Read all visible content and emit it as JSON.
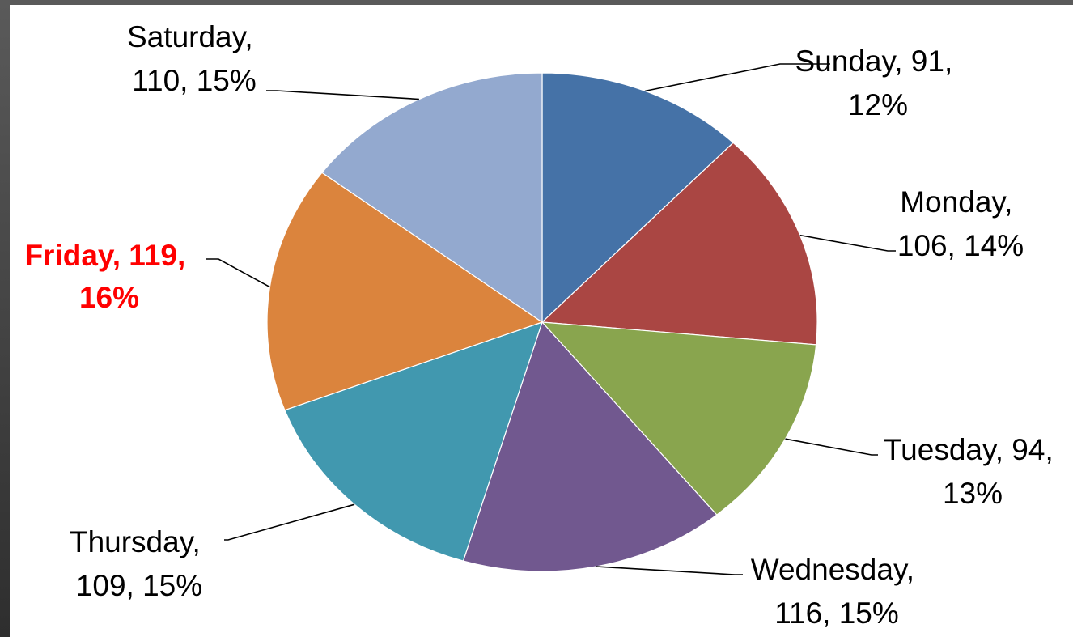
{
  "chart_data": {
    "type": "pie",
    "title": "",
    "slices": [
      {
        "category": "Sunday",
        "value": 91,
        "percent": "12%",
        "color": "#4572a7",
        "highlight": false
      },
      {
        "category": "Monday",
        "value": 106,
        "percent": "14%",
        "color": "#aa4643",
        "highlight": false
      },
      {
        "category": "Tuesday",
        "value": 94,
        "percent": "13%",
        "color": "#89a54e",
        "highlight": false
      },
      {
        "category": "Wednesday",
        "value": 116,
        "percent": "15%",
        "color": "#71588f",
        "highlight": false
      },
      {
        "category": "Thursday",
        "value": 109,
        "percent": "15%",
        "color": "#4198af",
        "highlight": false
      },
      {
        "category": "Friday",
        "value": 119,
        "percent": "16%",
        "color": "#db843d",
        "highlight": true,
        "highlight_color": "#ff0000"
      },
      {
        "category": "Saturday",
        "value": 110,
        "percent": "15%",
        "color": "#93a9cf",
        "highlight": false
      }
    ],
    "labels": [
      {
        "line1": "Sunday, 91,",
        "line2": "12%"
      },
      {
        "line1": "Monday,",
        "line2": "106, 14%"
      },
      {
        "line1": "Tuesday, 94,",
        "line2": "13%"
      },
      {
        "line1": "Wednesday,",
        "line2": "116, 15%"
      },
      {
        "line1": "Thursday,",
        "line2": "109, 15%"
      },
      {
        "line1": "Friday, 119,",
        "line2": "16%"
      },
      {
        "line1": "Saturday,",
        "line2": "110, 15%"
      }
    ],
    "legend": "none",
    "data_labels": "outside with leader lines",
    "start_angle": "12 o'clock, clockwise"
  }
}
